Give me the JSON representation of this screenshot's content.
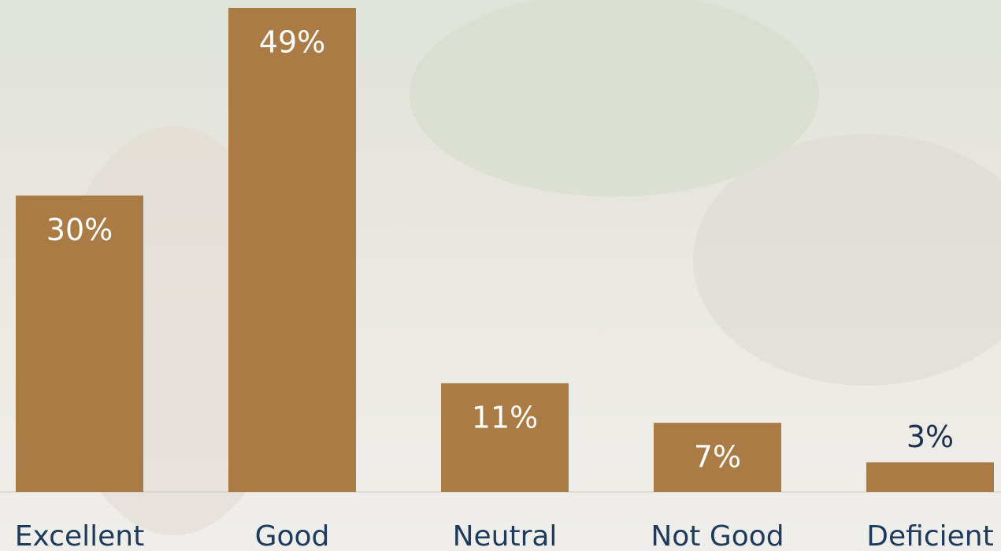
{
  "chart_data": {
    "type": "bar",
    "categories": [
      "Excellent",
      "Good",
      "Neutral",
      "Not Good",
      "Deficient"
    ],
    "values": [
      30,
      49,
      11,
      7,
      3
    ],
    "value_labels": [
      "30%",
      "49%",
      "11%",
      "7%",
      "3%"
    ],
    "color": "#aa7b44"
  }
}
